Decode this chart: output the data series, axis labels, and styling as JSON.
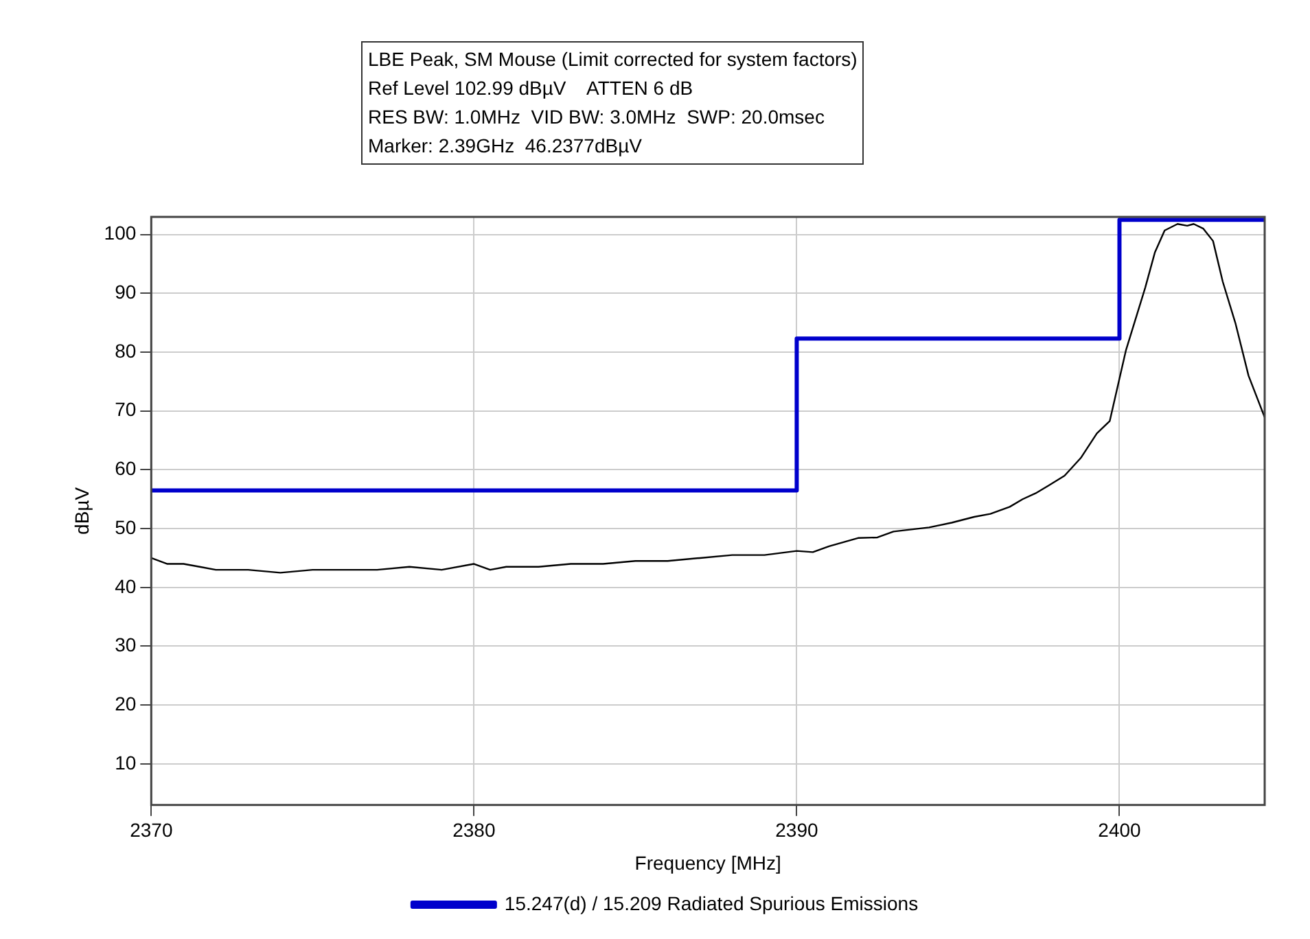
{
  "chart_data": {
    "type": "line",
    "title": "LBE Peak, SM Mouse (Limit corrected for system factors)",
    "annotations": [
      "Ref Level 102.99 dBµV    ATTEN 6 dB",
      "RES BW: 1.0MHz  VID BW: 3.0MHz  SWP: 20.0msec",
      "Marker: 2.39GHz  46.2377dBµV"
    ],
    "xlabel": "Frequency [MHz]",
    "ylabel": "dBµV",
    "xlim": [
      2370,
      2404.5
    ],
    "xticks": [
      2370,
      2380,
      2390,
      2400
    ],
    "ylim": [
      3,
      103
    ],
    "yticks": [
      10,
      20,
      30,
      40,
      50,
      60,
      70,
      80,
      90,
      100
    ],
    "grid": true,
    "legend": "bottom",
    "marker": "none",
    "line_style": "solid",
    "series": [
      {
        "color": "#000000",
        "x": [
          2370,
          2370.5,
          2371,
          2371.5,
          2372,
          2373,
          2374,
          2375,
          2376,
          2377,
          2378,
          2379,
          2380,
          2380.5,
          2381,
          2382,
          2383,
          2384,
          2385,
          2386,
          2387,
          2388,
          2389,
          2390,
          2390.5,
          2391,
          2391.9,
          2392.5,
          2393,
          2394.1,
          2394.8,
          2395.5,
          2396,
          2396.6,
          2397,
          2397.4,
          2397.8,
          2398.3,
          2398.8,
          2399.3,
          2399.7,
          2400.2,
          2400.8,
          2401.1,
          2401.4,
          2401.8,
          2402.1,
          2402.3,
          2402.6,
          2402.9,
          2403.2,
          2403.6,
          2404,
          2404.5
        ],
        "values": [
          45,
          44,
          44,
          43.5,
          43,
          43,
          42.5,
          43,
          43,
          43,
          43.5,
          43,
          44,
          43,
          43.5,
          43.5,
          44,
          44,
          44.5,
          44.5,
          45,
          45.5,
          45.5,
          46.2,
          46,
          47,
          48.4,
          48.5,
          49.5,
          50.2,
          51,
          52,
          52.5,
          53.7,
          55,
          56,
          57.3,
          59,
          62,
          66.2,
          68.3,
          80.3,
          91,
          97,
          100.7,
          101.8,
          101.5,
          101.8,
          101,
          98.9,
          92,
          84.8,
          76,
          68.9
        ]
      },
      {
        "name": "15.247(d) / 15.209 Radiated Spurious Emissions",
        "color": "#0000cc",
        "x": [
          2370,
          2390,
          2390,
          2400,
          2400,
          2404.5
        ],
        "values": [
          56.5,
          56.5,
          82.3,
          82.3,
          102.5,
          102.5
        ]
      }
    ]
  }
}
